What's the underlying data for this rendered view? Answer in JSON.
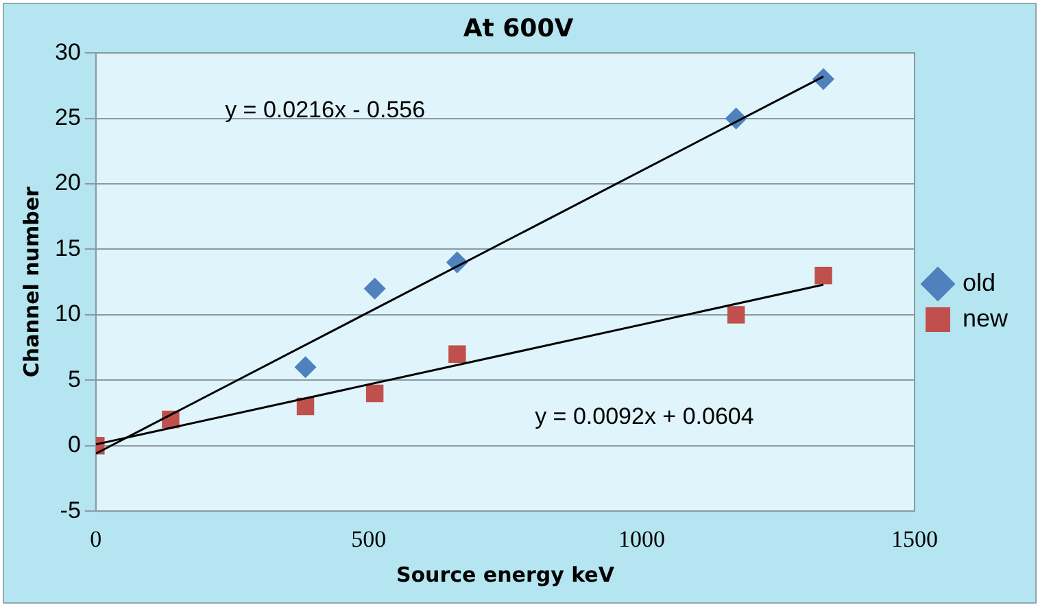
{
  "chart_data": {
    "type": "scatter",
    "title": "At 600V",
    "xlabel": "Source energy keV",
    "ylabel": "Channel number",
    "xlim": [
      0,
      1500
    ],
    "xticks": [
      0,
      500,
      1000,
      1500
    ],
    "ylim": [
      -5,
      30
    ],
    "yticks": [
      -5,
      0,
      5,
      10,
      15,
      20,
      25,
      30
    ],
    "grid": "y",
    "legend": "right",
    "series": [
      {
        "name": "old",
        "color": "#4f81bd",
        "marker": "diamond",
        "x": [
          384,
          511,
          662,
          1173,
          1333
        ],
        "values": [
          6,
          12,
          14,
          25,
          28
        ]
      },
      {
        "name": "new",
        "color": "#c0504d",
        "marker": "square",
        "x": [
          0,
          137,
          384,
          511,
          662,
          1173,
          1333
        ],
        "values": [
          0,
          2,
          3,
          4,
          7,
          10,
          13
        ]
      },
      {
        "type": "line",
        "color": "#000000",
        "marker": "none",
        "x": [
          0,
          1333
        ],
        "values": [
          -0.6,
          28.2
        ]
      },
      {
        "type": "line",
        "color": "#000000",
        "marker": "none",
        "x": [
          0,
          1333
        ],
        "values": [
          0.1,
          12.3
        ]
      }
    ],
    "annotations": [
      "y = 0.0216x - 0.556",
      "y = 0.0092x + 0.0604"
    ]
  }
}
